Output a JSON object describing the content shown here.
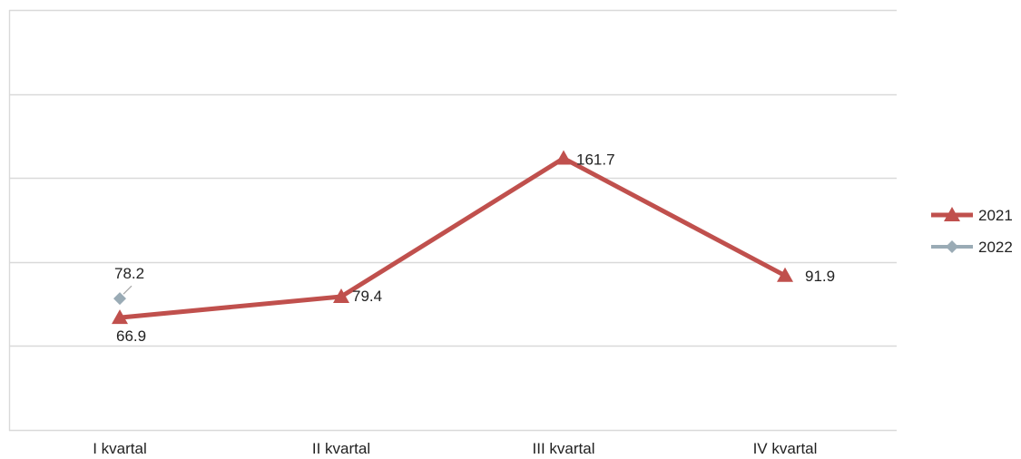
{
  "chart_data": {
    "type": "line",
    "categories": [
      "I kvartal",
      "II kvartal",
      "III kvartal",
      "IV kvartal"
    ],
    "ylim": [
      0,
      250
    ],
    "grid": true,
    "legend_position": "right",
    "series": [
      {
        "name": "2021",
        "values": [
          66.9,
          79.4,
          161.7,
          91.9
        ],
        "value_labels": [
          "66.9",
          "79.4",
          "161.7",
          "91.9"
        ],
        "color": "#c0504d",
        "marker": "triangle"
      },
      {
        "name": "2022",
        "values": [
          78.2,
          null,
          null,
          null
        ],
        "value_labels": [
          "78.2",
          null,
          null,
          null
        ],
        "color": "#9aabb5",
        "marker": "diamond"
      }
    ]
  }
}
